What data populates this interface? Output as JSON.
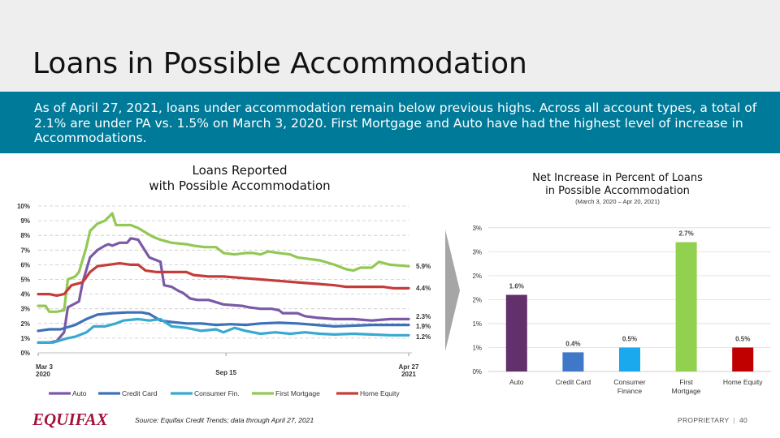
{
  "title": "Loans in Possible Accommodation",
  "banner_text": "As of April 27, 2021, loans under accommodation remain below previous highs. Across all account types, a total of 2.1% are under PA vs. 1.5% on March 3, 2020. First Mortgage and Auto have had the highest level of increase in Accommodations.",
  "line_chart_title": [
    "Loans Reported",
    "with Possible Accommodation"
  ],
  "bar_chart_title": [
    "Net Increase in Percent of Loans",
    "in Possible Accommodation"
  ],
  "bar_chart_subtitle": "(March 3, 2020 – Apr 20, 2021)",
  "footer": {
    "logo": "EQUIFAX",
    "source": "Source: Equifax Credit Trends; data through April 27, 2021",
    "proprietary": "PROPRIETARY",
    "page_number": "40"
  },
  "colors": {
    "Auto": "#7a5aa6",
    "Credit Card": "#3d72b8",
    "Consumer Fin.": "#38a9d0",
    "First Mortgage": "#92c853",
    "Home Equity": "#c43d3a"
  },
  "chart_data": [
    {
      "type": "line",
      "title": "Loans Reported with Possible Accommodation",
      "ylim": [
        0,
        10
      ],
      "yticks": [
        "0%",
        "1%",
        "2%",
        "3%",
        "4%",
        "5%",
        "6%",
        "7%",
        "8%",
        "9%",
        "10%"
      ],
      "xticks": [
        {
          "t": 0,
          "label": [
            "Mar 3",
            "2020"
          ]
        },
        {
          "t": 0.507,
          "label": [
            "Sep 15"
          ]
        },
        {
          "t": 1,
          "label": [
            "Apr 27",
            "2021"
          ]
        }
      ],
      "grid": true,
      "legend_position": "bottom",
      "series": [
        {
          "name": "Auto",
          "end_label": "2.3%",
          "points": [
            [
              0,
              0.7
            ],
            [
              0.03,
              0.7
            ],
            [
              0.05,
              0.8
            ],
            [
              0.07,
              1.4
            ],
            [
              0.08,
              3.1
            ],
            [
              0.11,
              3.5
            ],
            [
              0.12,
              4.8
            ],
            [
              0.14,
              6.5
            ],
            [
              0.16,
              7
            ],
            [
              0.18,
              7.3
            ],
            [
              0.19,
              7.4
            ],
            [
              0.2,
              7.3
            ],
            [
              0.22,
              7.5
            ],
            [
              0.24,
              7.5
            ],
            [
              0.25,
              7.8
            ],
            [
              0.27,
              7.7
            ],
            [
              0.29,
              6.9
            ],
            [
              0.3,
              6.5
            ],
            [
              0.33,
              6.2
            ],
            [
              0.34,
              4.6
            ],
            [
              0.36,
              4.5
            ],
            [
              0.38,
              4.2
            ],
            [
              0.39,
              4.1
            ],
            [
              0.41,
              3.7
            ],
            [
              0.43,
              3.6
            ],
            [
              0.46,
              3.6
            ],
            [
              0.5,
              3.3
            ],
            [
              0.55,
              3.2
            ],
            [
              0.57,
              3.1
            ],
            [
              0.6,
              3
            ],
            [
              0.63,
              3
            ],
            [
              0.65,
              2.9
            ],
            [
              0.66,
              2.7
            ],
            [
              0.7,
              2.7
            ],
            [
              0.72,
              2.5
            ],
            [
              0.75,
              2.4
            ],
            [
              0.8,
              2.3
            ],
            [
              0.85,
              2.3
            ],
            [
              0.9,
              2.2
            ],
            [
              0.95,
              2.3
            ],
            [
              1,
              2.3
            ]
          ]
        },
        {
          "name": "Credit Card",
          "end_label": "1.9%",
          "points": [
            [
              0,
              1.5
            ],
            [
              0.03,
              1.6
            ],
            [
              0.06,
              1.6
            ],
            [
              0.1,
              1.9
            ],
            [
              0.13,
              2.3
            ],
            [
              0.16,
              2.6
            ],
            [
              0.2,
              2.7
            ],
            [
              0.24,
              2.75
            ],
            [
              0.28,
              2.75
            ],
            [
              0.3,
              2.65
            ],
            [
              0.33,
              2.2
            ],
            [
              0.36,
              2.1
            ],
            [
              0.4,
              2
            ],
            [
              0.44,
              2
            ],
            [
              0.48,
              1.9
            ],
            [
              0.52,
              1.95
            ],
            [
              0.56,
              1.9
            ],
            [
              0.6,
              2
            ],
            [
              0.65,
              2.05
            ],
            [
              0.7,
              2
            ],
            [
              0.75,
              1.9
            ],
            [
              0.8,
              1.8
            ],
            [
              0.85,
              1.85
            ],
            [
              0.9,
              1.9
            ],
            [
              0.95,
              1.9
            ],
            [
              1,
              1.9
            ]
          ]
        },
        {
          "name": "Consumer Fin.",
          "end_label": "1.2%",
          "points": [
            [
              0,
              0.7
            ],
            [
              0.04,
              0.7
            ],
            [
              0.08,
              1
            ],
            [
              0.1,
              1.1
            ],
            [
              0.13,
              1.4
            ],
            [
              0.15,
              1.8
            ],
            [
              0.18,
              1.8
            ],
            [
              0.21,
              2
            ],
            [
              0.23,
              2.2
            ],
            [
              0.27,
              2.3
            ],
            [
              0.3,
              2.2
            ],
            [
              0.33,
              2.3
            ],
            [
              0.36,
              1.8
            ],
            [
              0.4,
              1.7
            ],
            [
              0.44,
              1.5
            ],
            [
              0.48,
              1.6
            ],
            [
              0.5,
              1.4
            ],
            [
              0.53,
              1.7
            ],
            [
              0.56,
              1.5
            ],
            [
              0.6,
              1.3
            ],
            [
              0.64,
              1.4
            ],
            [
              0.68,
              1.3
            ],
            [
              0.72,
              1.4
            ],
            [
              0.76,
              1.3
            ],
            [
              0.8,
              1.25
            ],
            [
              0.85,
              1.3
            ],
            [
              0.9,
              1.25
            ],
            [
              0.95,
              1.2
            ],
            [
              1,
              1.2
            ]
          ]
        },
        {
          "name": "First Mortgage",
          "end_label": "5.9%",
          "points": [
            [
              0,
              3.2
            ],
            [
              0.02,
              3.2
            ],
            [
              0.03,
              2.8
            ],
            [
              0.05,
              2.8
            ],
            [
              0.07,
              2.9
            ],
            [
              0.08,
              5
            ],
            [
              0.1,
              5.2
            ],
            [
              0.11,
              5.5
            ],
            [
              0.13,
              7.2
            ],
            [
              0.14,
              8.3
            ],
            [
              0.16,
              8.8
            ],
            [
              0.18,
              9
            ],
            [
              0.2,
              9.5
            ],
            [
              0.21,
              8.7
            ],
            [
              0.23,
              8.7
            ],
            [
              0.25,
              8.7
            ],
            [
              0.27,
              8.5
            ],
            [
              0.29,
              8.2
            ],
            [
              0.31,
              7.9
            ],
            [
              0.33,
              7.7
            ],
            [
              0.36,
              7.5
            ],
            [
              0.4,
              7.4
            ],
            [
              0.42,
              7.3
            ],
            [
              0.45,
              7.2
            ],
            [
              0.48,
              7.2
            ],
            [
              0.5,
              6.8
            ],
            [
              0.53,
              6.7
            ],
            [
              0.56,
              6.8
            ],
            [
              0.58,
              6.8
            ],
            [
              0.6,
              6.7
            ],
            [
              0.62,
              6.9
            ],
            [
              0.65,
              6.8
            ],
            [
              0.68,
              6.7
            ],
            [
              0.7,
              6.5
            ],
            [
              0.73,
              6.4
            ],
            [
              0.76,
              6.3
            ],
            [
              0.8,
              6
            ],
            [
              0.83,
              5.7
            ],
            [
              0.85,
              5.6
            ],
            [
              0.87,
              5.8
            ],
            [
              0.9,
              5.8
            ],
            [
              0.92,
              6.2
            ],
            [
              0.95,
              6
            ],
            [
              1,
              5.9
            ]
          ]
        },
        {
          "name": "Home Equity",
          "end_label": "4.4%",
          "points": [
            [
              0,
              4
            ],
            [
              0.03,
              4
            ],
            [
              0.05,
              3.9
            ],
            [
              0.07,
              4
            ],
            [
              0.09,
              4.6
            ],
            [
              0.12,
              4.8
            ],
            [
              0.14,
              5.5
            ],
            [
              0.16,
              5.9
            ],
            [
              0.19,
              6
            ],
            [
              0.22,
              6.1
            ],
            [
              0.25,
              6
            ],
            [
              0.27,
              6
            ],
            [
              0.29,
              5.6
            ],
            [
              0.32,
              5.5
            ],
            [
              0.36,
              5.5
            ],
            [
              0.4,
              5.5
            ],
            [
              0.42,
              5.3
            ],
            [
              0.46,
              5.2
            ],
            [
              0.5,
              5.2
            ],
            [
              0.55,
              5.1
            ],
            [
              0.6,
              5
            ],
            [
              0.65,
              4.9
            ],
            [
              0.7,
              4.8
            ],
            [
              0.75,
              4.7
            ],
            [
              0.8,
              4.6
            ],
            [
              0.83,
              4.5
            ],
            [
              0.86,
              4.5
            ],
            [
              0.9,
              4.5
            ],
            [
              0.93,
              4.5
            ],
            [
              0.96,
              4.4
            ],
            [
              1,
              4.4
            ]
          ]
        }
      ]
    },
    {
      "type": "bar",
      "title": "Net Increase in Percent of Loans in Possible Accommodation",
      "categories": [
        [
          "Auto"
        ],
        [
          "Credit Card"
        ],
        [
          "Consumer",
          "Finance"
        ],
        [
          "First",
          "Mortgage"
        ],
        [
          "Home Equity"
        ]
      ],
      "values": [
        1.6,
        0.4,
        0.5,
        2.7,
        0.5
      ],
      "labels": [
        "1.6%",
        "0.4%",
        "0.5%",
        "2.7%",
        "0.5%"
      ],
      "colors": [
        "#62306a",
        "#3f78c6",
        "#1aa9ec",
        "#92d04f",
        "#c00000"
      ],
      "ylim": [
        0,
        3.2
      ],
      "yticks": [
        {
          "v": 0,
          "label": "0%"
        },
        {
          "v": 0.5,
          "label": "1%"
        },
        {
          "v": 1,
          "label": "1%"
        },
        {
          "v": 1.5,
          "label": "2%"
        },
        {
          "v": 2,
          "label": "2%"
        },
        {
          "v": 2.5,
          "label": "3%"
        },
        {
          "v": 3,
          "label": "3%"
        }
      ]
    }
  ]
}
